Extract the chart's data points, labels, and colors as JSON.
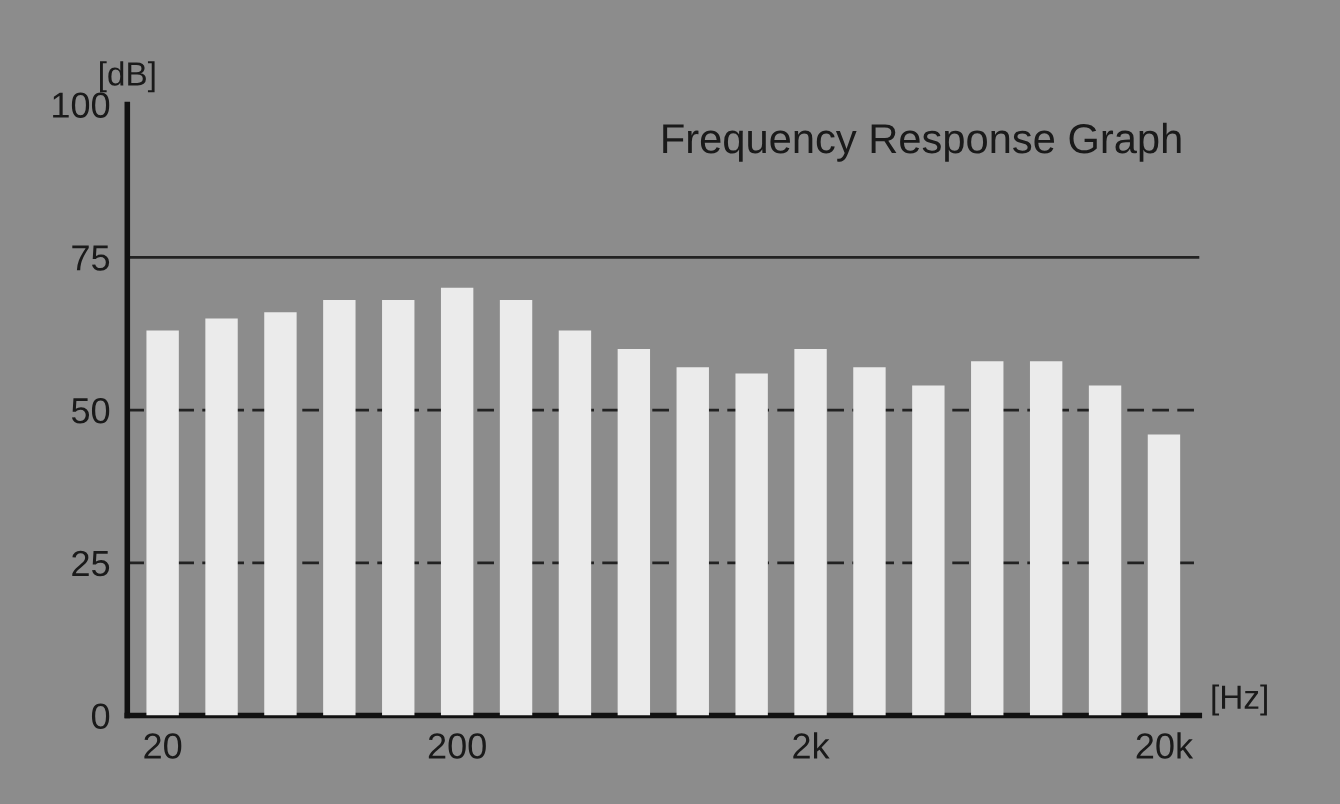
{
  "chart_data": {
    "type": "bar",
    "title": "Frequency Response Graph",
    "xlabel": "[Hz]",
    "ylabel": "[dB]",
    "categories": [
      "20",
      null,
      null,
      null,
      null,
      "200",
      null,
      null,
      null,
      null,
      null,
      "2k",
      null,
      null,
      null,
      null,
      null,
      "20k"
    ],
    "values": [
      63,
      65,
      66,
      68,
      68,
      70,
      68,
      63,
      60,
      57,
      56,
      60,
      57,
      54,
      58,
      58,
      54,
      46
    ],
    "color": "#ebebeb",
    "ylim": [
      0,
      100
    ],
    "yticks": [
      0,
      25,
      50,
      75,
      100
    ],
    "grid": false,
    "ref_lines": [
      {
        "axis": "y",
        "value": 75,
        "line_style": "solid",
        "color": "#222222"
      },
      {
        "axis": "y",
        "value": 50,
        "line_style": "dashed",
        "color": "#222222"
      },
      {
        "axis": "y",
        "value": 25,
        "line_style": "dashed",
        "color": "#222222"
      }
    ]
  }
}
